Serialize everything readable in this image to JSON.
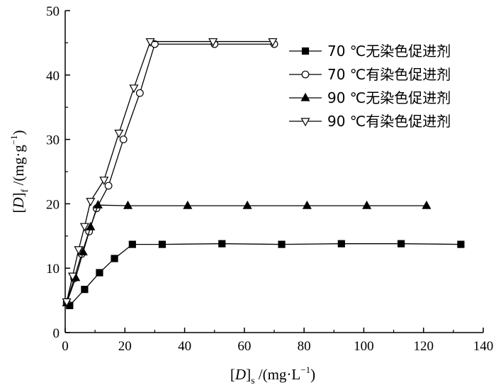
{
  "chart_data": {
    "type": "line",
    "title": "",
    "xlabel": {
      "open": "[",
      "var": "D",
      "close": "]",
      "sub": "s",
      "unit": " /(mg·L",
      "sup": "−1",
      "end": ")"
    },
    "ylabel": {
      "open": "[",
      "var": "D",
      "close": "]",
      "sub": "f",
      "unit": " /(mg·g",
      "sup": "−1",
      "end": ")"
    },
    "xlim": [
      0,
      140
    ],
    "ylim": [
      0,
      50
    ],
    "xticks": [
      "0",
      "20",
      "40",
      "60",
      "80",
      "100",
      "120",
      "140"
    ],
    "yticks": [
      "0",
      "10",
      "20",
      "30",
      "40",
      "50"
    ],
    "grid": false,
    "legend_position": "top-right",
    "series": [
      {
        "name": "70 ℃无染色促进剂",
        "marker": "square",
        "filled": true,
        "points": [
          [
            1.5,
            4.2
          ],
          [
            6.5,
            6.7
          ],
          [
            11.5,
            9.3
          ],
          [
            16.5,
            11.5
          ],
          [
            22.5,
            13.7
          ],
          [
            32.5,
            13.7
          ],
          [
            52.5,
            13.8
          ],
          [
            72.5,
            13.7
          ],
          [
            92.5,
            13.8
          ],
          [
            112.5,
            13.8
          ],
          [
            132.5,
            13.7
          ]
        ]
      },
      {
        "name": "70 ℃有染色促进剂",
        "marker": "circle",
        "filled": false,
        "points": [
          [
            0.5,
            4.7
          ],
          [
            3,
            8.4
          ],
          [
            5.5,
            12.2
          ],
          [
            8,
            15.7
          ],
          [
            10.5,
            19.3
          ],
          [
            14.5,
            22.8
          ],
          [
            19.5,
            30.0
          ],
          [
            25,
            37.2
          ],
          [
            30,
            44.8
          ],
          [
            50,
            44.8
          ],
          [
            70,
            44.8
          ]
        ]
      },
      {
        "name": "90 ℃无染色促进剂",
        "marker": "triangle-up",
        "filled": true,
        "points": [
          [
            0.5,
            4.6
          ],
          [
            3.5,
            8.5
          ],
          [
            6,
            12.5
          ],
          [
            8.5,
            16.4
          ],
          [
            11,
            19.8
          ],
          [
            21,
            19.7
          ],
          [
            41,
            19.7
          ],
          [
            61,
            19.7
          ],
          [
            81,
            19.7
          ],
          [
            101,
            19.7
          ],
          [
            121,
            19.7
          ]
        ]
      },
      {
        "name": "90 ℃有染色促进剂",
        "marker": "triangle-down",
        "filled": false,
        "points": [
          [
            0.5,
            4.8
          ],
          [
            2.5,
            8.8
          ],
          [
            4.5,
            12.9
          ],
          [
            6.5,
            16.5
          ],
          [
            8.5,
            20.4
          ],
          [
            13,
            23.7
          ],
          [
            18,
            31.0
          ],
          [
            23,
            38.0
          ],
          [
            28.5,
            45.2
          ],
          [
            49.5,
            45.2
          ],
          [
            69.5,
            45.2
          ]
        ]
      }
    ]
  }
}
